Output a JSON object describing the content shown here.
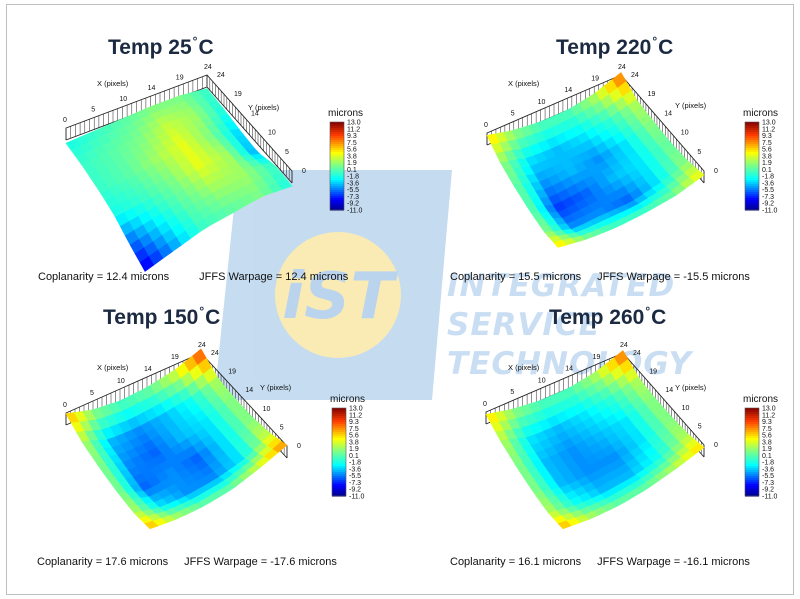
{
  "watermark": {
    "logo_text": "iST",
    "line1": "INTEGRATED",
    "line2": "SERVICE",
    "line3": "TECHNOLOGY"
  },
  "chart_data": [
    {
      "type": "heatmap",
      "title_prefix": "Temp 25",
      "title_suffix": "C",
      "x_axis_label": "X (pixels)",
      "y_axis_label": "Y (pixels)",
      "x_ticks": [
        "0",
        "5",
        "10",
        "14",
        "19",
        "24"
      ],
      "y_ticks": [
        "24",
        "19",
        "14",
        "10",
        "5",
        "0"
      ],
      "colorbar_title": "microns",
      "colorbar_ticks": [
        "13.0",
        "11.2",
        "9.3",
        "7.5",
        "5.6",
        "3.8",
        "1.9",
        "0.1",
        "-1.8",
        "-3.6",
        "-5.5",
        "-7.3",
        "-9.2",
        "-11.0"
      ],
      "colorbar_range": [
        -11.0,
        13.0
      ],
      "surface": [
        [
          -2,
          -1,
          0,
          1,
          1,
          -1
        ],
        [
          -1,
          0,
          1,
          3,
          2,
          -2
        ],
        [
          -1,
          0,
          2,
          4,
          1,
          -4
        ],
        [
          -2,
          -1,
          1,
          4,
          2,
          -5
        ],
        [
          -6,
          -3,
          0,
          2,
          2,
          -1
        ],
        [
          -9,
          -5,
          -1,
          0,
          1,
          -2
        ]
      ],
      "coplanarity_text": "Coplanarity = 12.4 microns",
      "warpage_text": "JFFS Warpage = 12.4 microns"
    },
    {
      "type": "heatmap",
      "title_prefix": "Temp 220",
      "title_suffix": "C",
      "x_axis_label": "X (pixels)",
      "y_axis_label": "Y (pixels)",
      "x_ticks": [
        "0",
        "5",
        "10",
        "14",
        "19",
        "24"
      ],
      "y_ticks": [
        "24",
        "19",
        "14",
        "10",
        "5",
        "0"
      ],
      "colorbar_title": "microns",
      "colorbar_ticks": [
        "13.0",
        "11.2",
        "9.3",
        "7.5",
        "5.6",
        "3.8",
        "1.9",
        "0.1",
        "-1.8",
        "-3.6",
        "-5.5",
        "-7.3",
        "-9.2",
        "-11.0"
      ],
      "colorbar_range": [
        -11.0,
        13.0
      ],
      "surface": [
        [
          6,
          2,
          0,
          0,
          3,
          9
        ],
        [
          2,
          -3,
          -4,
          -3,
          -1,
          3
        ],
        [
          1,
          -5,
          -4,
          -5,
          -3,
          2
        ],
        [
          1,
          -7,
          -6,
          -4,
          -3,
          1
        ],
        [
          2,
          -5,
          -5,
          -6,
          -3,
          2
        ],
        [
          6,
          2,
          0,
          0,
          1,
          5
        ]
      ],
      "coplanarity_text": "Coplanarity = 15.5 microns",
      "warpage_text": "JFFS Warpage = -15.5 microns"
    },
    {
      "type": "heatmap",
      "title_prefix": "Temp 150",
      "title_suffix": "C",
      "x_axis_label": "X (pixels)",
      "y_axis_label": "Y (pixels)",
      "x_ticks": [
        "0",
        "5",
        "10",
        "14",
        "19",
        "24"
      ],
      "y_ticks": [
        "24",
        "19",
        "14",
        "10",
        "5",
        "0"
      ],
      "colorbar_title": "microns",
      "colorbar_ticks": [
        "13.0",
        "11.2",
        "9.3",
        "7.5",
        "5.6",
        "3.8",
        "1.9",
        "0.1",
        "-1.8",
        "-3.6",
        "-5.5",
        "-7.3",
        "-9.2",
        "-11.0"
      ],
      "colorbar_range": [
        -11.0,
        13.0
      ],
      "surface": [
        [
          7,
          2,
          0,
          1,
          4,
          10
        ],
        [
          3,
          -4,
          -5,
          -4,
          -2,
          3
        ],
        [
          2,
          -5,
          -6,
          -4,
          -3,
          2
        ],
        [
          2,
          -6,
          -5,
          -6,
          -3,
          2
        ],
        [
          3,
          -3,
          -5,
          -5,
          -3,
          4
        ],
        [
          7,
          3,
          1,
          1,
          4,
          8
        ]
      ],
      "coplanarity_text": "Coplanarity = 17.6 microns",
      "warpage_text": "JFFS Warpage = -17.6 microns"
    },
    {
      "type": "heatmap",
      "title_prefix": "Temp 260",
      "title_suffix": "C",
      "x_axis_label": "X (pixels)",
      "y_axis_label": "Y (pixels)",
      "x_ticks": [
        "0",
        "5",
        "10",
        "14",
        "19",
        "24"
      ],
      "y_ticks": [
        "24",
        "19",
        "14",
        "10",
        "5",
        "0"
      ],
      "colorbar_title": "microns",
      "colorbar_ticks": [
        "13.0",
        "11.2",
        "9.3",
        "7.5",
        "5.6",
        "3.8",
        "1.9",
        "0.1",
        "-1.8",
        "-3.6",
        "-5.5",
        "-7.3",
        "-9.2",
        "-11.0"
      ],
      "colorbar_range": [
        -11.0,
        13.0
      ],
      "surface": [
        [
          6,
          2,
          0,
          0,
          3,
          9
        ],
        [
          3,
          -3,
          -4,
          -3,
          -1,
          3
        ],
        [
          2,
          -4,
          -5,
          -4,
          -3,
          2
        ],
        [
          2,
          -4,
          -5,
          -5,
          -3,
          2
        ],
        [
          3,
          -2,
          -4,
          -4,
          -2,
          3
        ],
        [
          7,
          3,
          1,
          1,
          3,
          6
        ]
      ],
      "coplanarity_text": "Coplanarity = 16.1 microns",
      "warpage_text": "JFFS Warpage = -16.1 microns"
    }
  ]
}
